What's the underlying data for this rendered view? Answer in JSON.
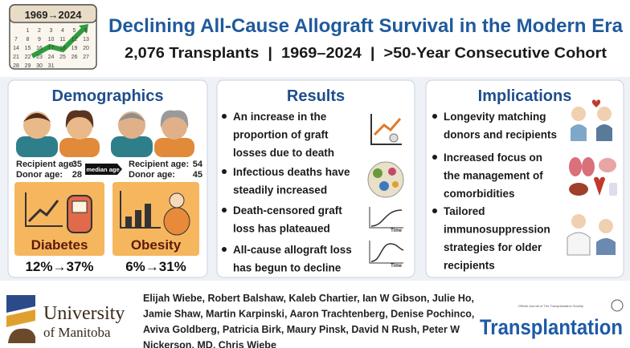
{
  "header": {
    "calendar": "1969→2024",
    "days": [
      "1",
      "2",
      "3",
      "4",
      "5",
      "6",
      "7",
      "8",
      "9",
      "10",
      "11",
      "12",
      "13",
      "14",
      "15",
      "16",
      "17",
      "18",
      "19",
      "20",
      "21",
      "22",
      "23",
      "24",
      "25",
      "26",
      "27",
      "28",
      "29",
      "30",
      "31"
    ],
    "title": "Declining All-Cause Allograft Survival in the Modern Era",
    "subtitle": "2,076 Transplants  |  1969–2024  |  >50-Year Consecutive Cohort"
  },
  "demographics": {
    "title": "Demographics",
    "early": {
      "recipient_label": "Recipient age:",
      "recipient_age": "35",
      "donor_label": "Donor age:",
      "donor_age": "28"
    },
    "median_label": "median age",
    "late": {
      "recipient_label": "Recipient age:",
      "recipient_age": "54",
      "donor_label": "Donor age:",
      "donor_age": "45"
    },
    "diabetes": {
      "label": "Diabetes",
      "change": "12%→37%"
    },
    "obesity": {
      "label": "Obesity",
      "change": "6%→31%"
    }
  },
  "results": {
    "title": "Results",
    "items": [
      [
        "An increase in the",
        "proportion of graft",
        "losses due to death"
      ],
      [
        "Infectious deaths have",
        "steadily increased"
      ],
      [
        "Death-censored graft",
        "loss has plateaued"
      ],
      [
        "All-cause allograft loss",
        "has begun to decline"
      ]
    ],
    "axis_label": "Time"
  },
  "implications": {
    "title": "Implications",
    "items": [
      [
        "Longevity matching",
        "donors and recipients"
      ],
      [
        "Increased focus on",
        "the management of",
        "comorbidities"
      ],
      [
        "Tailored",
        "immunosuppression",
        "strategies for older",
        "recipients"
      ]
    ]
  },
  "footer": {
    "university": "University",
    "university_sub": "of Manitoba",
    "authors": [
      "Elijah Wiebe, Robert Balshaw, Kaleb Chartier, Ian W Gibson, Julie Ho,",
      "Jamie Shaw, Martin Karpinski, Aaron Trachtenberg, Denise Pochinco,",
      "Aviva Goldberg, Patricia Birk, Maury Pinsk, David N Rush, Peter W",
      "Nickerson, MD, Chris Wiebe"
    ],
    "journal_note": "Official Journal of The Transplantation Society",
    "journal": "Transplantation"
  }
}
